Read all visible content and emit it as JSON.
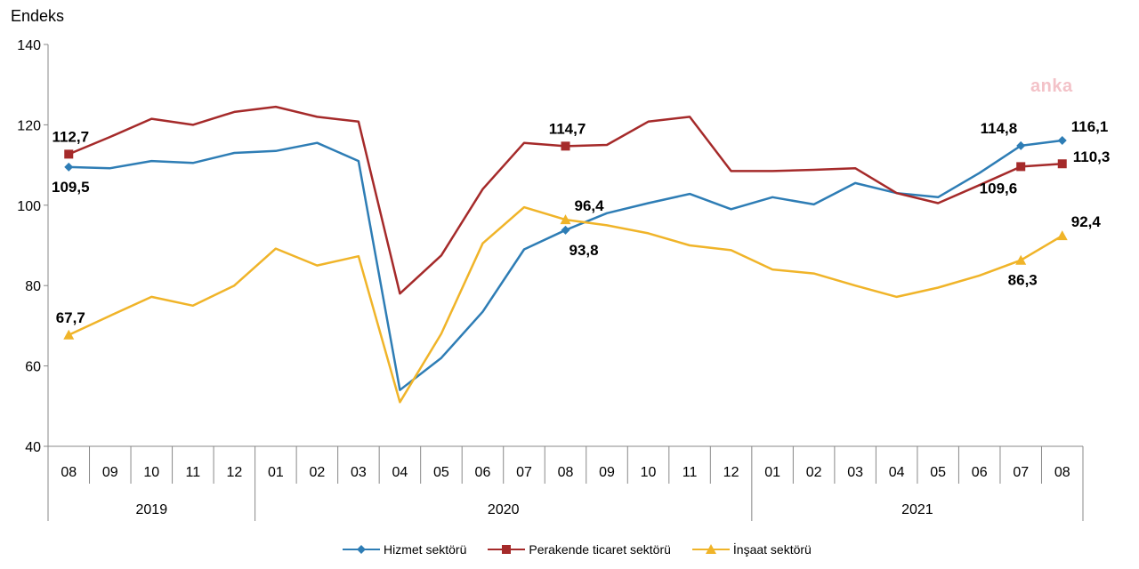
{
  "chart_data": {
    "type": "line",
    "ylabel": "Endeks",
    "ylim": [
      40,
      140
    ],
    "yticks": [
      40,
      60,
      80,
      100,
      120,
      140
    ],
    "categories": [
      "08",
      "09",
      "10",
      "11",
      "12",
      "01",
      "02",
      "03",
      "04",
      "05",
      "06",
      "07",
      "08",
      "09",
      "10",
      "11",
      "12",
      "01",
      "02",
      "03",
      "04",
      "05",
      "06",
      "07",
      "08"
    ],
    "years": [
      {
        "label": "2019",
        "start": 0,
        "end": 4
      },
      {
        "label": "2020",
        "start": 5,
        "end": 16
      },
      {
        "label": "2021",
        "start": 17,
        "end": 24
      }
    ],
    "series": [
      {
        "name": "Hizmet sektörü",
        "color": "#2e7db5",
        "marker": "diamond",
        "values": [
          109.5,
          109.2,
          111.0,
          110.5,
          113.0,
          113.5,
          115.5,
          111.0,
          54.0,
          62.0,
          73.5,
          89.0,
          93.8,
          98.0,
          100.5,
          102.8,
          99.0,
          102.0,
          100.2,
          105.5,
          103.0,
          102.0,
          108.0,
          114.8,
          116.1
        ],
        "labels": [
          {
            "index": 0,
            "text": "109,5",
            "pos": "below"
          },
          {
            "index": 12,
            "text": "93,8",
            "pos": "below-right"
          },
          {
            "index": 23,
            "text": "114,8",
            "pos": "above-left"
          },
          {
            "index": 24,
            "text": "116,1",
            "pos": "above-right"
          }
        ]
      },
      {
        "name": "Perakende ticaret sektörü",
        "color": "#a52a2a",
        "marker": "square",
        "values": [
          112.7,
          117.0,
          121.5,
          120.0,
          123.2,
          124.5,
          122.0,
          120.8,
          78.0,
          87.5,
          104.0,
          115.5,
          114.7,
          115.0,
          120.8,
          122.0,
          108.5,
          108.5,
          108.8,
          109.2,
          103.0,
          100.5,
          105.0,
          109.6,
          110.3
        ],
        "labels": [
          {
            "index": 0,
            "text": "112,7",
            "pos": "above"
          },
          {
            "index": 12,
            "text": "114,7",
            "pos": "above"
          },
          {
            "index": 23,
            "text": "109,6",
            "pos": "below-left"
          },
          {
            "index": 24,
            "text": "110,3",
            "pos": "right"
          }
        ]
      },
      {
        "name": "İnşaat sektörü",
        "color": "#f0b429",
        "marker": "triangle",
        "values": [
          67.7,
          72.5,
          77.2,
          75.0,
          80.0,
          89.2,
          85.0,
          87.3,
          51.0,
          68.0,
          90.5,
          99.5,
          96.4,
          95.0,
          93.0,
          90.0,
          88.8,
          84.0,
          83.0,
          80.0,
          77.2,
          79.5,
          82.5,
          86.3,
          92.4
        ],
        "labels": [
          {
            "index": 0,
            "text": "67,7",
            "pos": "above"
          },
          {
            "index": 12,
            "text": "96,4",
            "pos": "above-right"
          },
          {
            "index": 23,
            "text": "86,3",
            "pos": "below"
          },
          {
            "index": 24,
            "text": "92,4",
            "pos": "above-right"
          }
        ]
      }
    ]
  },
  "watermark": "anka"
}
